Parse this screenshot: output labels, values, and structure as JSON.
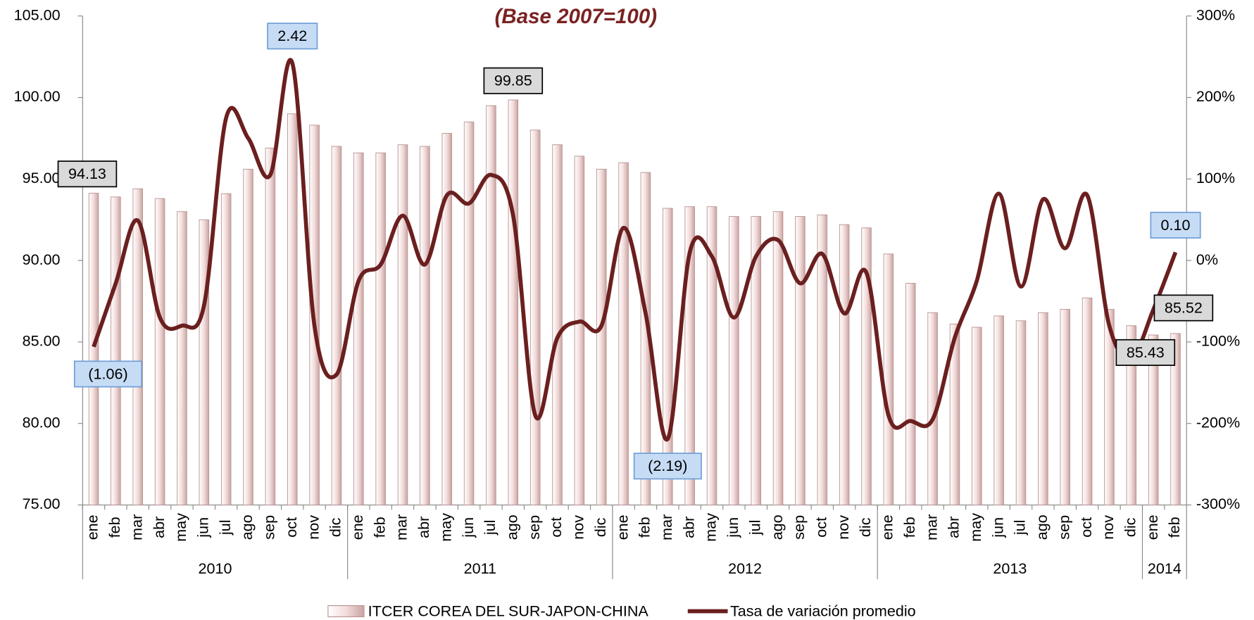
{
  "chart_data": {
    "type": "bar-line",
    "title": "(Base 2007=100)",
    "groups": [
      {
        "name": "2010",
        "months": [
          "ene",
          "feb",
          "mar",
          "abr",
          "may",
          "jun",
          "jul",
          "ago",
          "sep",
          "oct",
          "nov",
          "dic"
        ]
      },
      {
        "name": "2011",
        "months": [
          "ene",
          "feb",
          "mar",
          "abr",
          "may",
          "jun",
          "jul",
          "ago",
          "sep",
          "oct",
          "nov",
          "dic"
        ]
      },
      {
        "name": "2012",
        "months": [
          "ene",
          "feb",
          "mar",
          "abr",
          "may",
          "jun",
          "jul",
          "ago",
          "sep",
          "oct",
          "nov",
          "dic"
        ]
      },
      {
        "name": "2013",
        "months": [
          "ene",
          "feb",
          "mar",
          "abr",
          "may",
          "jun",
          "jul",
          "ago",
          "sep",
          "oct",
          "nov",
          "dic"
        ]
      },
      {
        "name": "2014",
        "months": [
          "ene",
          "feb"
        ]
      }
    ],
    "ylim": [
      75,
      105
    ],
    "yticks": [
      {
        "value": 75,
        "label": "75.00"
      },
      {
        "value": 80,
        "label": "80.00"
      },
      {
        "value": 85,
        "label": "85.00"
      },
      {
        "value": 90,
        "label": "90.00"
      },
      {
        "value": 95,
        "label": "95.00"
      },
      {
        "value": 100,
        "label": "100.00"
      },
      {
        "value": 105,
        "label": "105.00"
      }
    ],
    "y2lim": [
      -3,
      3
    ],
    "y2ticks": [
      {
        "value": -3,
        "label": "-300%"
      },
      {
        "value": -2,
        "label": "-200%"
      },
      {
        "value": -1,
        "label": "-100%"
      },
      {
        "value": 0,
        "label": "0%"
      },
      {
        "value": 1,
        "label": "100%"
      },
      {
        "value": 2,
        "label": "200%"
      },
      {
        "value": 3,
        "label": "300%"
      }
    ],
    "series": [
      {
        "name": "ITCER COREA DEL SUR-JAPON-CHINA",
        "type": "bar",
        "color": "#f2dcdb",
        "values": [
          94.13,
          93.9,
          94.4,
          93.8,
          93.0,
          92.5,
          94.1,
          95.6,
          96.9,
          99.0,
          98.3,
          97.0,
          96.6,
          96.6,
          97.1,
          97.0,
          97.8,
          98.5,
          99.5,
          99.85,
          98.0,
          97.1,
          96.4,
          95.6,
          96.0,
          95.4,
          93.2,
          93.3,
          93.3,
          92.7,
          92.7,
          93.0,
          92.7,
          92.8,
          92.2,
          92.0,
          90.4,
          88.6,
          86.8,
          86.1,
          85.9,
          86.6,
          86.3,
          86.8,
          87.0,
          87.7,
          87.0,
          86.0,
          85.43,
          85.52
        ],
        "value_labels": [
          "94.13",
          null,
          null,
          null,
          null,
          null,
          null,
          null,
          null,
          null,
          null,
          null,
          null,
          null,
          null,
          null,
          null,
          null,
          null,
          "99.85",
          null,
          null,
          null,
          null,
          null,
          null,
          null,
          null,
          null,
          null,
          null,
          null,
          null,
          null,
          null,
          null,
          null,
          null,
          null,
          null,
          null,
          null,
          null,
          null,
          null,
          null,
          null,
          null,
          "85.43",
          "85.52"
        ]
      },
      {
        "name": "Tasa de variación promedio",
        "type": "line",
        "axis": "y2",
        "color": "#6b1f1f",
        "values": [
          -1.06,
          -0.28,
          0.49,
          -0.7,
          -0.8,
          -0.55,
          1.75,
          1.5,
          1.05,
          2.42,
          -0.8,
          -1.4,
          -0.25,
          -0.05,
          0.55,
          -0.05,
          0.8,
          0.7,
          1.05,
          0.55,
          -1.9,
          -0.95,
          -0.75,
          -0.8,
          0.4,
          -0.65,
          -2.19,
          0.1,
          0.05,
          -0.7,
          0.05,
          0.25,
          -0.28,
          0.08,
          -0.65,
          -0.15,
          -1.9,
          -1.97,
          -1.95,
          -0.95,
          -0.25,
          0.82,
          -0.32,
          0.75,
          0.15,
          0.8,
          -0.8,
          -1.2,
          -0.6,
          0.1
        ],
        "value_labels": [
          "(1.06)",
          null,
          null,
          null,
          null,
          null,
          null,
          null,
          null,
          "2.42",
          null,
          null,
          null,
          null,
          null,
          null,
          null,
          null,
          null,
          null,
          null,
          null,
          null,
          null,
          null,
          null,
          "(2.19)",
          null,
          null,
          null,
          null,
          null,
          null,
          null,
          null,
          null,
          null,
          null,
          null,
          null,
          null,
          null,
          null,
          null,
          null,
          null,
          null,
          null,
          null,
          "0.10"
        ]
      }
    ]
  }
}
